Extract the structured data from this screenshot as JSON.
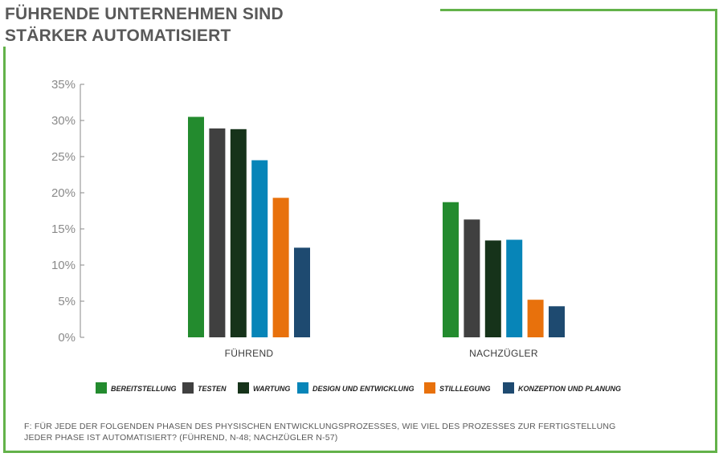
{
  "title": {
    "line1": "FÜHRENDE UNTERNEHMEN SIND",
    "line2": "STÄRKER AUTOMATISIERT"
  },
  "footnote": {
    "line1": "F: FÜR JEDE DER FOLGENDEN PHASEN DES PHYSISCHEN ENTWICKLUNGSPROZESSES, WIE VIEL DES PROZESSES ZUR FERTIGSTELLUNG",
    "line2": "JEDER PHASE IST AUTOMATISIERT?  (FÜHREND, N-48; NACHZÜGLER N-57)"
  },
  "colors": {
    "frame": "#63b24a",
    "title": "#595959"
  },
  "chart_data": {
    "type": "bar",
    "categories": [
      "FÜHREND",
      "NACHZÜGLER"
    ],
    "ylim": [
      0,
      35
    ],
    "yticks": [
      0,
      5,
      10,
      15,
      20,
      25,
      30,
      35
    ],
    "ytick_labels": [
      "0%",
      "5%",
      "10%",
      "15%",
      "20%",
      "25%",
      "30%",
      "35%"
    ],
    "legend_position": "bottom",
    "grid": false,
    "series": [
      {
        "name": "BEREITSTELLUNG",
        "color": "#238b2e",
        "values": [
          30.5,
          18.7
        ]
      },
      {
        "name": "TESTEN",
        "color": "#404040",
        "values": [
          28.9,
          16.3
        ]
      },
      {
        "name": "WARTUNG",
        "color": "#16331a",
        "values": [
          28.8,
          13.4
        ]
      },
      {
        "name": "DESIGN UND ENTWICKLUNG",
        "color": "#0785b8",
        "values": [
          24.5,
          13.5
        ]
      },
      {
        "name": "STILLLEGUNG",
        "color": "#e8710c",
        "values": [
          19.3,
          5.2
        ]
      },
      {
        "name": "KONZEPTION UND PLANUNG",
        "color": "#1e4a70",
        "values": [
          12.4,
          4.3
        ]
      }
    ]
  }
}
